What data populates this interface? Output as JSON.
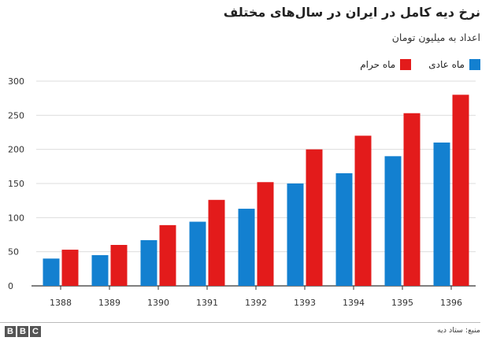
{
  "title": "نرخ دیه کامل در ایران در سال‌های مختلف",
  "subtitle": "اعداد به میلیون تومان",
  "source": "منبع: ستاد دیه",
  "logo_text": "BBC",
  "colors": {
    "normal": "#1380d0",
    "haram": "#e31b1b",
    "grid": "#dddddd",
    "axis": "#333333"
  },
  "chart_data": {
    "type": "bar",
    "title": "نرخ دیه کامل در ایران در سال‌های مختلف",
    "subtitle": "اعداد به میلیون تومان",
    "categories": [
      "1388",
      "1389",
      "1390",
      "1391",
      "1392",
      "1393",
      "1394",
      "1395",
      "1396"
    ],
    "series": [
      {
        "name": "ماه عادی",
        "color": "#1380d0",
        "values": [
          40,
          45,
          67,
          94,
          113,
          150,
          165,
          190,
          210
        ]
      },
      {
        "name": "ماه حرام",
        "color": "#e31b1b",
        "values": [
          53,
          60,
          89,
          126,
          152,
          200,
          220,
          253,
          280
        ]
      }
    ],
    "ylim": [
      0,
      300
    ],
    "yticks": [
      0,
      50,
      100,
      150,
      200,
      250,
      300
    ],
    "grid": true,
    "legend_position": "top-right"
  }
}
